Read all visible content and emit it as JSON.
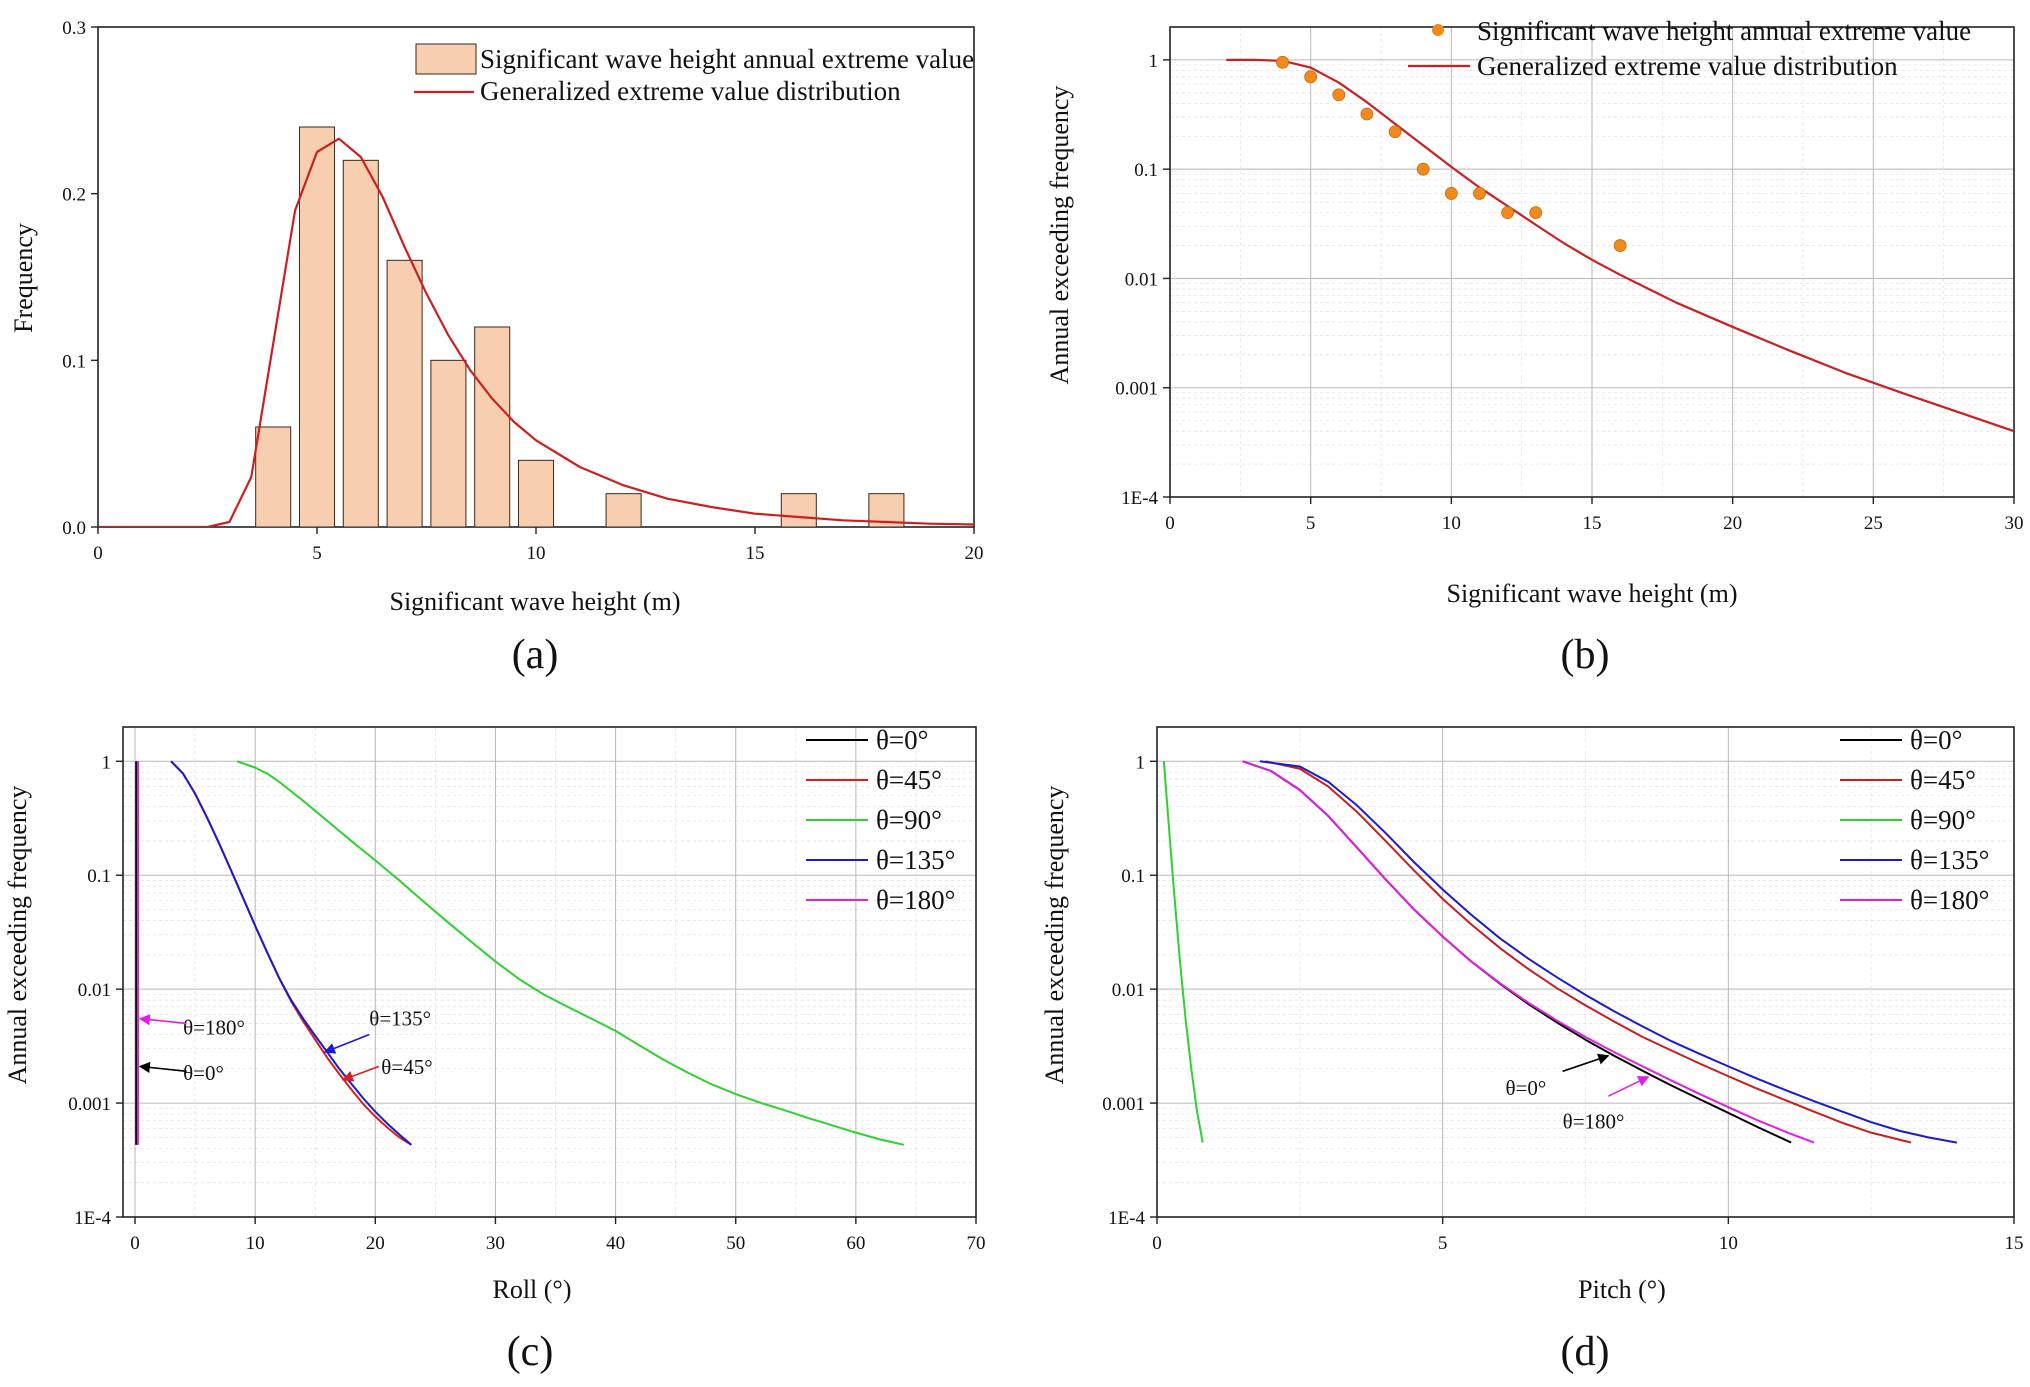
{
  "chart_data": [
    {
      "id": "a",
      "type": "bar",
      "panel_label": "(a)",
      "xlabel": "Significant wave height (m)",
      "ylabel": "Frequency",
      "xlim": [
        0,
        20
      ],
      "ylim": [
        0,
        0.3
      ],
      "xticks": [
        0,
        5,
        10,
        15,
        20
      ],
      "yticks": [
        0.0,
        0.1,
        0.2,
        0.3
      ],
      "ytick_labels": [
        "0.0",
        "0.1",
        "0.2",
        "0.3"
      ],
      "legend": [
        "Significant wave height annual extreme value",
        "Generalized extreme value distribution"
      ],
      "bar_width": 0.8,
      "bars": {
        "x": [
          4,
          5,
          6,
          7,
          8,
          9,
          10,
          12,
          16,
          18
        ],
        "values": [
          0.06,
          0.24,
          0.22,
          0.16,
          0.1,
          0.12,
          0.04,
          0.02,
          0.02,
          0.02
        ]
      },
      "curve": {
        "x": [
          0,
          2.5,
          3,
          3.5,
          4,
          4.5,
          5,
          5.5,
          6,
          6.5,
          7,
          7.5,
          8,
          8.5,
          9,
          9.5,
          10,
          11,
          12,
          13,
          14,
          15,
          16,
          17,
          18,
          19,
          20
        ],
        "y": [
          0,
          0.0,
          0.003,
          0.03,
          0.11,
          0.19,
          0.225,
          0.233,
          0.222,
          0.198,
          0.168,
          0.14,
          0.115,
          0.094,
          0.077,
          0.063,
          0.052,
          0.036,
          0.025,
          0.017,
          0.012,
          0.008,
          0.006,
          0.004,
          0.003,
          0.002,
          0.0015
        ]
      },
      "colors": {
        "bar_fill": "#f7cfb0",
        "bar_edge": "#3a2a1a",
        "curve": "#cc1f1f"
      }
    },
    {
      "id": "b",
      "type": "scatter",
      "panel_label": "(b)",
      "xlabel": "Significant wave height (m)",
      "ylabel": "Annual exceeding frequency",
      "xlim": [
        0,
        30
      ],
      "ylim": [
        0.0001,
        2
      ],
      "yscale": "log",
      "xticks": [
        0,
        5,
        10,
        15,
        20,
        25,
        30
      ],
      "yticks": [
        0.0001,
        0.001,
        0.01,
        0.1,
        1
      ],
      "ytick_labels": [
        "1E-4",
        "0.001",
        "0.01",
        "0.1",
        "1"
      ],
      "legend": [
        "Significant wave height annual extreme value",
        "Generalized extreme value distribution"
      ],
      "points": {
        "x": [
          4,
          5,
          6,
          7,
          8,
          9,
          10,
          11,
          12,
          13,
          16
        ],
        "y": [
          0.95,
          0.7,
          0.48,
          0.32,
          0.22,
          0.1,
          0.06,
          0.06,
          0.04,
          0.04,
          0.02
        ]
      },
      "curve": {
        "x": [
          2,
          3,
          4,
          5,
          6,
          7,
          8,
          9,
          10,
          11,
          12,
          13,
          14,
          15,
          16,
          18,
          20,
          22,
          24,
          26,
          28,
          30
        ],
        "y": [
          1.0,
          1.0,
          0.98,
          0.85,
          0.62,
          0.41,
          0.26,
          0.165,
          0.105,
          0.068,
          0.046,
          0.031,
          0.021,
          0.0148,
          0.0108,
          0.006,
          0.0036,
          0.0022,
          0.00137,
          0.0009,
          0.0006,
          0.0004
        ]
      },
      "colors": {
        "points": "#f08a1c",
        "curve": "#cc1f1f"
      }
    },
    {
      "id": "c",
      "type": "line",
      "panel_label": "(c)",
      "xlabel": "Roll (°)",
      "ylabel": "Annual exceeding frequency",
      "xlim": [
        -1,
        70
      ],
      "ylim": [
        0.0001,
        2
      ],
      "yscale": "log",
      "xticks": [
        0,
        10,
        20,
        30,
        40,
        50,
        60,
        70
      ],
      "yticks": [
        0.0001,
        0.001,
        0.01,
        0.1,
        1
      ],
      "ytick_labels": [
        "1E-4",
        "0.001",
        "0.01",
        "0.1",
        "1"
      ],
      "series": [
        {
          "name": "θ=0°",
          "color": "#000000",
          "x": [
            0.1,
            0.1
          ],
          "y": [
            1.0,
            0.00043
          ]
        },
        {
          "name": "θ=45°",
          "color": "#d42020",
          "x": [
            3,
            4,
            5,
            6,
            7,
            8,
            9,
            10,
            11,
            12,
            13,
            14,
            15,
            16,
            17,
            18,
            19,
            20,
            21,
            22,
            23
          ],
          "y": [
            1.0,
            0.78,
            0.52,
            0.32,
            0.19,
            0.11,
            0.063,
            0.036,
            0.021,
            0.0125,
            0.0078,
            0.0052,
            0.0036,
            0.0025,
            0.0018,
            0.00132,
            0.00098,
            0.00076,
            0.00061,
            0.0005,
            0.00043
          ]
        },
        {
          "name": "θ=90°",
          "color": "#2fd12f",
          "x": [
            8.5,
            10,
            11,
            12,
            14,
            16,
            18,
            20,
            22,
            24,
            26,
            28,
            30,
            32,
            34,
            36,
            38,
            40,
            42,
            44,
            46,
            48,
            50,
            52,
            54,
            56,
            58,
            60,
            62,
            64
          ],
          "y": [
            1.0,
            0.88,
            0.78,
            0.66,
            0.45,
            0.3,
            0.2,
            0.135,
            0.09,
            0.059,
            0.039,
            0.026,
            0.0175,
            0.0122,
            0.009,
            0.007,
            0.0055,
            0.0043,
            0.0032,
            0.0024,
            0.00185,
            0.00146,
            0.0012,
            0.00101,
            0.00087,
            0.00074,
            0.00064,
            0.00055,
            0.00048,
            0.00043
          ]
        },
        {
          "name": "θ=135°",
          "color": "#1a1ad0",
          "x": [
            3,
            4,
            5,
            6,
            7,
            8,
            9,
            10,
            11,
            12,
            13,
            14,
            15,
            16,
            17,
            18,
            19,
            20,
            21,
            22,
            23
          ],
          "y": [
            1.0,
            0.78,
            0.52,
            0.32,
            0.19,
            0.11,
            0.063,
            0.036,
            0.021,
            0.0125,
            0.008,
            0.0055,
            0.0039,
            0.0028,
            0.002,
            0.00148,
            0.0011,
            0.00084,
            0.00066,
            0.00053,
            0.00043
          ]
        },
        {
          "name": "θ=180°",
          "color": "#e020e0",
          "x": [
            0.25,
            0.25
          ],
          "y": [
            1.0,
            0.00043
          ]
        }
      ],
      "annotations": [
        {
          "text": "θ=180°",
          "color": "#e020e0",
          "tx": 4,
          "ty": 0.004,
          "from": [
            4.3,
            0.005
          ],
          "to": [
            0.4,
            0.0055
          ]
        },
        {
          "text": "θ=0°",
          "color": "#000000",
          "tx": 4,
          "ty": 0.0016,
          "from": [
            4.3,
            0.0019
          ],
          "to": [
            0.4,
            0.0021
          ]
        },
        {
          "text": "θ=135°",
          "color": "#1a1ad0",
          "tx": 19.5,
          "ty": 0.0048,
          "from": [
            19.5,
            0.004
          ],
          "to": [
            15.8,
            0.0028
          ]
        },
        {
          "text": "θ=45°",
          "color": "#d42020",
          "tx": 20.5,
          "ty": 0.0018,
          "from": [
            20.3,
            0.0021
          ],
          "to": [
            17.3,
            0.0016
          ]
        }
      ]
    },
    {
      "id": "d",
      "type": "line",
      "panel_label": "(d)",
      "xlabel": "Pitch (°)",
      "ylabel": "Annual exceeding frequency",
      "xlim": [
        0,
        15
      ],
      "ylim": [
        0.0001,
        2
      ],
      "yscale": "log",
      "xticks": [
        0,
        5,
        10,
        15
      ],
      "yticks": [
        0.0001,
        0.001,
        0.01,
        0.1,
        1
      ],
      "ytick_labels": [
        "1E-4",
        "0.001",
        "0.01",
        "0.1",
        "1"
      ],
      "series": [
        {
          "name": "θ=0°",
          "color": "#000000",
          "x": [
            1.5,
            2,
            2.5,
            3,
            3.5,
            4,
            4.5,
            5,
            5.5,
            6,
            6.5,
            7,
            7.5,
            8,
            8.5,
            9,
            9.5,
            10,
            10.5,
            11.1
          ],
          "y": [
            1.0,
            0.82,
            0.56,
            0.33,
            0.175,
            0.092,
            0.05,
            0.029,
            0.0175,
            0.0112,
            0.0074,
            0.0051,
            0.0036,
            0.0026,
            0.00192,
            0.00143,
            0.00108,
            0.00082,
            0.00062,
            0.00045
          ]
        },
        {
          "name": "θ=45°",
          "color": "#c81e1e",
          "x": [
            1.9,
            2.5,
            3,
            3.5,
            4,
            4.5,
            5,
            5.5,
            6,
            6.5,
            7,
            7.5,
            8,
            8.5,
            9,
            9.5,
            10,
            10.5,
            11,
            11.5,
            12,
            12.5,
            13.2
          ],
          "y": [
            1.0,
            0.86,
            0.6,
            0.36,
            0.2,
            0.11,
            0.062,
            0.037,
            0.023,
            0.015,
            0.0102,
            0.0072,
            0.0052,
            0.0038,
            0.0029,
            0.00222,
            0.00172,
            0.00134,
            0.00106,
            0.00084,
            0.00067,
            0.00055,
            0.00045
          ]
        },
        {
          "name": "θ=90°",
          "color": "#2fd12f",
          "x": [
            0.12,
            0.2,
            0.3,
            0.4,
            0.5,
            0.6,
            0.7,
            0.8
          ],
          "y": [
            1.0,
            0.3,
            0.07,
            0.018,
            0.0055,
            0.002,
            0.00085,
            0.00045
          ]
        },
        {
          "name": "θ=135°",
          "color": "#1a1ad0",
          "x": [
            1.8,
            2.5,
            3,
            3.5,
            4,
            4.5,
            5,
            5.5,
            6,
            6.5,
            7,
            7.5,
            8,
            8.5,
            9,
            9.5,
            10,
            10.5,
            11,
            11.5,
            12,
            12.5,
            13,
            13.5,
            14
          ],
          "y": [
            1.0,
            0.9,
            0.66,
            0.41,
            0.235,
            0.13,
            0.075,
            0.045,
            0.028,
            0.0185,
            0.0127,
            0.0089,
            0.0064,
            0.0047,
            0.0035,
            0.0027,
            0.0021,
            0.00164,
            0.0013,
            0.00104,
            0.00084,
            0.00068,
            0.00057,
            0.0005,
            0.00045
          ]
        },
        {
          "name": "θ=180°",
          "color": "#e020e0",
          "x": [
            1.5,
            2,
            2.5,
            3,
            3.5,
            4,
            4.5,
            5,
            5.5,
            6,
            6.5,
            7,
            7.5,
            8,
            8.5,
            9,
            9.5,
            10,
            10.5,
            11,
            11.5
          ],
          "y": [
            1.0,
            0.82,
            0.56,
            0.33,
            0.175,
            0.092,
            0.05,
            0.029,
            0.0175,
            0.0113,
            0.0076,
            0.0053,
            0.0038,
            0.0028,
            0.0021,
            0.00158,
            0.0012,
            0.00092,
            0.00071,
            0.00056,
            0.00045
          ]
        }
      ],
      "annotations": [
        {
          "text": "θ=0°",
          "color": "#000000",
          "tx": 6.1,
          "ty": 0.00118,
          "from": [
            7.1,
            0.0019
          ],
          "to": [
            7.9,
            0.0026
          ]
        },
        {
          "text": "θ=180°",
          "color": "#e020e0",
          "tx": 7.1,
          "ty": 0.0006,
          "from": [
            7.9,
            0.00115
          ],
          "to": [
            8.6,
            0.0017
          ]
        }
      ]
    }
  ]
}
